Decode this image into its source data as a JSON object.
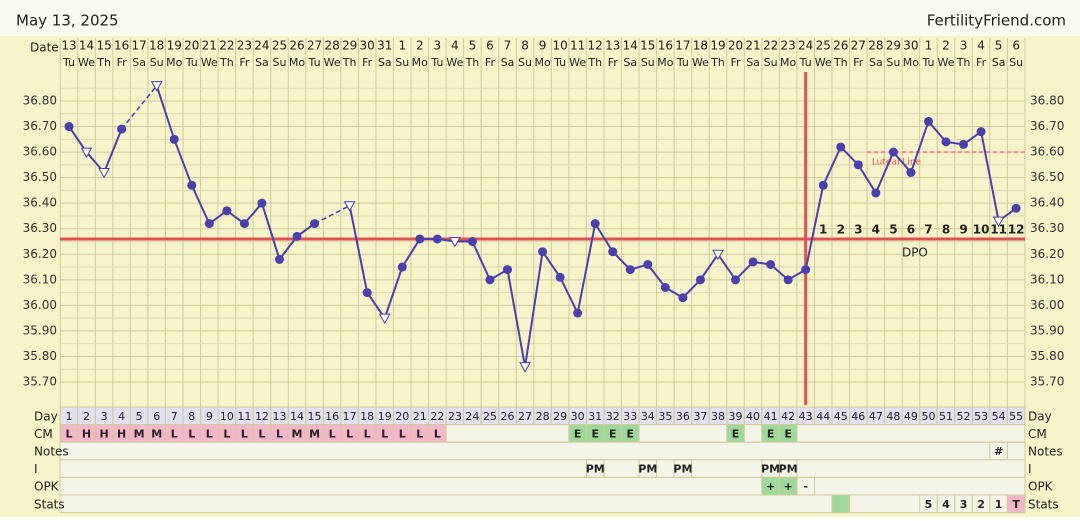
{
  "chart_data": {
    "type": "line",
    "title": "May 13, 2025",
    "brand": "FertilityFriend.com",
    "date_label": "Date",
    "dates": [
      13,
      14,
      15,
      16,
      17,
      18,
      19,
      20,
      21,
      22,
      23,
      24,
      25,
      26,
      27,
      28,
      29,
      30,
      31,
      1,
      2,
      3,
      4,
      5,
      6,
      7,
      8,
      9,
      10,
      11,
      12,
      13,
      14,
      15,
      16,
      17,
      18,
      19,
      20,
      21,
      22,
      23,
      24,
      25,
      26,
      27,
      28,
      29,
      30,
      1,
      2,
      3,
      4,
      5,
      6
    ],
    "weekdays": [
      "Tu",
      "We",
      "Th",
      "Fr",
      "Sa",
      "Su",
      "Mo",
      "Tu",
      "We",
      "Th",
      "Fr",
      "Sa",
      "Su",
      "Mo",
      "Tu",
      "We",
      "Th",
      "Fr",
      "Sa",
      "Su",
      "Mo",
      "Tu",
      "We",
      "Th",
      "Fr",
      "Sa",
      "Su",
      "Mo",
      "Tu",
      "We",
      "Th",
      "Fr",
      "Sa",
      "Su",
      "Mo",
      "Tu",
      "We",
      "Th",
      "Fr",
      "Sa",
      "Su",
      "Mo",
      "Tu",
      "We",
      "Th",
      "Fr",
      "Sa",
      "Su",
      "Mo",
      "Tu",
      "We",
      "Th",
      "Fr",
      "Sa",
      "Su"
    ],
    "series": [
      {
        "name": "Temperature",
        "color": "#4b3fb0",
        "values": [
          36.7,
          36.6,
          36.52,
          36.69,
          null,
          36.86,
          36.65,
          36.47,
          36.32,
          36.37,
          36.32,
          36.4,
          36.18,
          36.27,
          36.32,
          null,
          36.39,
          36.05,
          35.95,
          36.15,
          36.26,
          36.26,
          36.25,
          36.25,
          36.1,
          36.14,
          35.76,
          36.21,
          36.11,
          35.97,
          36.32,
          36.21,
          36.14,
          36.16,
          36.07,
          36.03,
          36.1,
          36.2,
          36.1,
          36.17,
          36.16,
          36.1,
          36.14,
          36.47,
          36.62,
          36.55,
          36.44,
          36.6,
          36.52,
          36.72,
          36.64,
          36.63,
          36.68,
          36.33,
          36.38
        ],
        "markers": [
          "filled",
          "open",
          "open",
          "filled",
          null,
          "open",
          "filled",
          "filled",
          "filled",
          "filled",
          "filled",
          "filled",
          "filled",
          "filled",
          "filled",
          null,
          "open",
          "filled",
          "open",
          "filled",
          "filled",
          "filled",
          "open",
          "filled",
          "filled",
          "filled",
          "open",
          "filled",
          "filled",
          "filled",
          "filled",
          "filled",
          "filled",
          "filled",
          "filled",
          "filled",
          "filled",
          "open",
          "filled",
          "filled",
          "filled",
          "filled",
          "filled",
          "filled",
          "filled",
          "filled",
          "filled",
          "filled",
          "filled",
          "filled",
          "filled",
          "filled",
          "filled",
          "open",
          "filled"
        ]
      }
    ],
    "ylim": [
      35.6,
      36.9
    ],
    "yticks": [
      {
        "value": 35.7,
        "label": "35.70"
      },
      {
        "value": 35.8,
        "label": "35.80"
      },
      {
        "value": 35.9,
        "label": "35.90"
      },
      {
        "value": 36.0,
        "label": "36.00"
      },
      {
        "value": 36.1,
        "label": "36.10"
      },
      {
        "value": 36.2,
        "label": "36.20"
      },
      {
        "value": 36.3,
        "label": "36.30"
      },
      {
        "value": 36.4,
        "label": "36.40"
      },
      {
        "value": 36.5,
        "label": "36.50"
      },
      {
        "value": 36.6,
        "label": "36.60"
      },
      {
        "value": 36.7,
        "label": "36.70"
      },
      {
        "value": 36.8,
        "label": "36.80"
      }
    ],
    "grid": true,
    "coverline": {
      "value": 36.26,
      "color": "#e05252"
    },
    "ovulation_day": 43,
    "luteal_line": {
      "label": "Luteal Line",
      "value": 36.6,
      "from_day": 47,
      "to_day": 55,
      "color": "#f08a9a"
    },
    "dpo": {
      "label": "DPO",
      "start_day": 44,
      "values": [
        1,
        2,
        3,
        4,
        5,
        6,
        7,
        8,
        9,
        10,
        11,
        12
      ]
    },
    "rows": {
      "day": {
        "label": "Day",
        "values": [
          1,
          2,
          3,
          4,
          5,
          6,
          7,
          8,
          9,
          10,
          11,
          12,
          13,
          14,
          15,
          16,
          17,
          18,
          19,
          20,
          21,
          22,
          23,
          24,
          25,
          26,
          27,
          28,
          29,
          30,
          31,
          32,
          33,
          34,
          35,
          36,
          37,
          38,
          39,
          40,
          41,
          42,
          43,
          44,
          45,
          46,
          47,
          48,
          49,
          50,
          51,
          52,
          53,
          54,
          55
        ]
      },
      "cm": {
        "label": "CM",
        "values": [
          "L",
          "H",
          "H",
          "H",
          "M",
          "M",
          "L",
          "L",
          "L",
          "L",
          "L",
          "L",
          "L",
          "M",
          "M",
          "L",
          "L",
          "L",
          "L",
          "L",
          "L",
          "L",
          null,
          null,
          null,
          null,
          null,
          null,
          null,
          "E",
          "E",
          "E",
          "E",
          null,
          null,
          null,
          null,
          null,
          "E",
          null,
          "E",
          "E",
          null,
          null,
          null,
          null,
          null,
          null,
          null,
          null,
          null,
          null,
          null,
          null,
          null
        ],
        "colors": {
          "L": "#f4b6c8",
          "H": "#f4b6c8",
          "M": "#f4b6c8",
          "E": "#9fd99a"
        }
      },
      "notes": {
        "label": "Notes",
        "values": [
          null,
          null,
          null,
          null,
          null,
          null,
          null,
          null,
          null,
          null,
          null,
          null,
          null,
          null,
          null,
          null,
          null,
          null,
          null,
          null,
          null,
          null,
          null,
          null,
          null,
          null,
          null,
          null,
          null,
          null,
          null,
          null,
          null,
          null,
          null,
          null,
          null,
          null,
          null,
          null,
          null,
          null,
          null,
          null,
          null,
          null,
          null,
          null,
          null,
          null,
          null,
          null,
          null,
          "#",
          null
        ]
      },
      "i": {
        "label": "I",
        "values": [
          null,
          null,
          null,
          null,
          null,
          null,
          null,
          null,
          null,
          null,
          null,
          null,
          null,
          null,
          null,
          null,
          null,
          null,
          null,
          null,
          null,
          null,
          null,
          null,
          null,
          null,
          null,
          null,
          null,
          null,
          "PM",
          null,
          null,
          "PM",
          null,
          "PM",
          null,
          null,
          null,
          null,
          "PM",
          "PM",
          null,
          null,
          null,
          null,
          null,
          null,
          null,
          null,
          null,
          null,
          null,
          null,
          null
        ]
      },
      "opk": {
        "label": "OPK",
        "values": [
          null,
          null,
          null,
          null,
          null,
          null,
          null,
          null,
          null,
          null,
          null,
          null,
          null,
          null,
          null,
          null,
          null,
          null,
          null,
          null,
          null,
          null,
          null,
          null,
          null,
          null,
          null,
          null,
          null,
          null,
          null,
          null,
          null,
          null,
          null,
          null,
          null,
          null,
          null,
          null,
          "+",
          "+",
          "-",
          null,
          null,
          null,
          null,
          null,
          null,
          null,
          null,
          null,
          null,
          null,
          null
        ],
        "colors": {
          "+": "#9fd99a"
        }
      },
      "stats": {
        "label": "Stats",
        "values": [
          null,
          null,
          null,
          null,
          null,
          null,
          null,
          null,
          null,
          null,
          null,
          null,
          null,
          null,
          null,
          null,
          null,
          null,
          null,
          null,
          null,
          null,
          null,
          null,
          null,
          null,
          null,
          null,
          null,
          null,
          null,
          null,
          null,
          null,
          null,
          null,
          null,
          null,
          null,
          null,
          null,
          null,
          null,
          null,
          "",
          null,
          null,
          null,
          null,
          5,
          4,
          3,
          2,
          1,
          "T"
        ],
        "colors": {
          "": "#9fd99a",
          "T": "#f4b6c8"
        }
      }
    }
  }
}
